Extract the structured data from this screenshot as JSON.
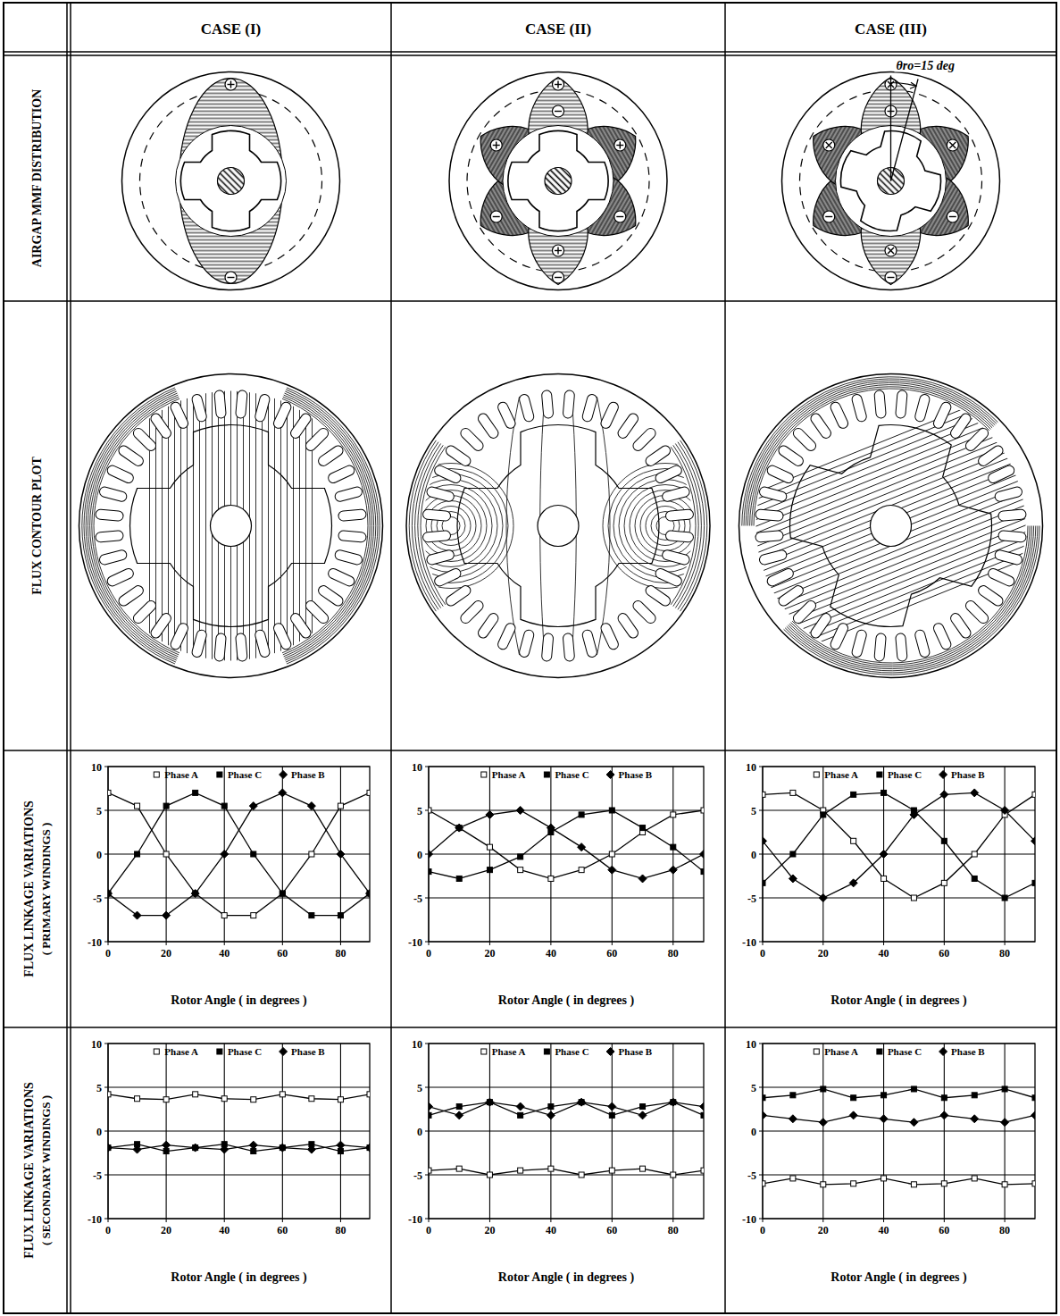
{
  "columns": [
    "CASE (I)",
    "CASE (II)",
    "CASE (III)"
  ],
  "rows": [
    {
      "title": "AIRGAP MMF DISTRIBUTION"
    },
    {
      "title": "FLUX CONTOUR PLOT"
    },
    {
      "title": "FLUX LINKAGE VARIATIONS",
      "subtitle": "( PRIMARY WINDINGS )"
    },
    {
      "title": "FLUX LINKAGE VARIATIONS",
      "subtitle": "( SECONDARY WINDINGS )"
    }
  ],
  "annotation": "θro=15 deg",
  "chart_data": [
    {
      "type": "line",
      "x": [
        0,
        10,
        20,
        30,
        40,
        50,
        60,
        70,
        80,
        90
      ],
      "xlim": [
        0,
        90
      ],
      "ylim": [
        -10,
        10
      ],
      "xticks": [
        0,
        20,
        40,
        60,
        80
      ],
      "yticks": [
        -10,
        -5,
        0,
        5,
        10
      ],
      "xlabel": "Rotor Angle ( in degrees )",
      "grid": true,
      "legend": "top",
      "series": [
        {
          "name": "Phase A",
          "color": "#000000",
          "marker": "open_square",
          "values": [
            7,
            5.5,
            0,
            -4.5,
            -7,
            -7,
            -4.5,
            0,
            5.5,
            7
          ]
        },
        {
          "name": "Phase C",
          "color": "#000000",
          "marker": "square",
          "values": [
            -4.5,
            0,
            5.5,
            7,
            5.5,
            0,
            -4.5,
            -7,
            -7,
            -4.5
          ]
        },
        {
          "name": "Phase B",
          "color": "#000000",
          "marker": "diamond",
          "values": [
            -4.5,
            -7,
            -7,
            -4.5,
            0,
            5.5,
            7,
            5.5,
            0,
            -4.5
          ]
        }
      ]
    },
    {
      "type": "line",
      "x": [
        0,
        10,
        20,
        30,
        40,
        50,
        60,
        70,
        80,
        90
      ],
      "xlim": [
        0,
        90
      ],
      "ylim": [
        -10,
        10
      ],
      "xticks": [
        0,
        20,
        40,
        60,
        80
      ],
      "yticks": [
        -10,
        -5,
        0,
        5,
        10
      ],
      "xlabel": "Rotor Angle ( in degrees )",
      "grid": true,
      "legend": "top",
      "series": [
        {
          "name": "Phase A",
          "color": "#000000",
          "marker": "open_square",
          "values": [
            5,
            3,
            0.8,
            -1.8,
            -2.8,
            -1.8,
            0,
            2.5,
            4.5,
            5
          ]
        },
        {
          "name": "Phase C",
          "color": "#000000",
          "marker": "square",
          "values": [
            -2,
            -2.8,
            -1.8,
            -0.3,
            2.5,
            4.5,
            5,
            3,
            0.8,
            -2
          ]
        },
        {
          "name": "Phase B",
          "color": "#000000",
          "marker": "diamond",
          "values": [
            0,
            3,
            4.5,
            5,
            3,
            0.8,
            -1.8,
            -2.8,
            -1.8,
            0
          ]
        }
      ]
    },
    {
      "type": "line",
      "x": [
        0,
        10,
        20,
        30,
        40,
        50,
        60,
        70,
        80,
        90
      ],
      "xlim": [
        0,
        90
      ],
      "ylim": [
        -10,
        10
      ],
      "xticks": [
        0,
        20,
        40,
        60,
        80
      ],
      "yticks": [
        -10,
        -5,
        0,
        5,
        10
      ],
      "xlabel": "Rotor Angle ( in degrees )",
      "grid": true,
      "legend": "top",
      "series": [
        {
          "name": "Phase A",
          "color": "#000000",
          "marker": "open_square",
          "values": [
            6.8,
            7,
            5,
            1.5,
            -2.8,
            -5,
            -3.3,
            0,
            4.5,
            6.8
          ]
        },
        {
          "name": "Phase C",
          "color": "#000000",
          "marker": "square",
          "values": [
            -3.3,
            0,
            4.5,
            6.8,
            7,
            5,
            1.5,
            -2.8,
            -5,
            -3.3
          ]
        },
        {
          "name": "Phase B",
          "color": "#000000",
          "marker": "diamond",
          "values": [
            1.5,
            -2.8,
            -5,
            -3.3,
            0,
            4.5,
            6.8,
            7,
            5,
            1.5
          ]
        }
      ]
    },
    {
      "type": "line",
      "x": [
        0,
        10,
        20,
        30,
        40,
        50,
        60,
        70,
        80,
        90
      ],
      "xlim": [
        0,
        90
      ],
      "ylim": [
        -10,
        10
      ],
      "xticks": [
        0,
        20,
        40,
        60,
        80
      ],
      "yticks": [
        -10,
        -5,
        0,
        5,
        10
      ],
      "xlabel": "Rotor Angle ( in degrees )",
      "grid": true,
      "legend": "top",
      "series": [
        {
          "name": "Phase A",
          "color": "#000000",
          "marker": "open_square",
          "values": [
            4.2,
            3.7,
            3.6,
            4.2,
            3.7,
            3.6,
            4.2,
            3.7,
            3.6,
            4.2
          ]
        },
        {
          "name": "Phase C",
          "color": "#000000",
          "marker": "square",
          "values": [
            -1.9,
            -1.5,
            -2.3,
            -1.9,
            -1.5,
            -2.3,
            -1.9,
            -1.5,
            -2.3,
            -1.9
          ]
        },
        {
          "name": "Phase B",
          "color": "#000000",
          "marker": "diamond",
          "values": [
            -1.9,
            -2.1,
            -1.6,
            -1.9,
            -2.1,
            -1.6,
            -1.9,
            -2.1,
            -1.6,
            -1.9
          ]
        }
      ]
    },
    {
      "type": "line",
      "x": [
        0,
        10,
        20,
        30,
        40,
        50,
        60,
        70,
        80,
        90
      ],
      "xlim": [
        0,
        90
      ],
      "ylim": [
        -10,
        10
      ],
      "xticks": [
        0,
        20,
        40,
        60,
        80
      ],
      "yticks": [
        -10,
        -5,
        0,
        5,
        10
      ],
      "xlabel": "Rotor Angle ( in degrees )",
      "grid": true,
      "legend": "top",
      "series": [
        {
          "name": "Phase A",
          "color": "#000000",
          "marker": "open_square",
          "values": [
            -4.5,
            -4.3,
            -5,
            -4.5,
            -4.3,
            -5,
            -4.5,
            -4.3,
            -5,
            -4.5
          ]
        },
        {
          "name": "Phase C",
          "color": "#000000",
          "marker": "square",
          "values": [
            1.8,
            2.8,
            3.3,
            1.8,
            2.8,
            3.3,
            1.8,
            2.8,
            3.3,
            1.8
          ]
        },
        {
          "name": "Phase B",
          "color": "#000000",
          "marker": "diamond",
          "values": [
            2.8,
            1.8,
            3.3,
            2.8,
            1.8,
            3.3,
            2.8,
            1.8,
            3.3,
            2.8
          ]
        }
      ]
    },
    {
      "type": "line",
      "x": [
        0,
        10,
        20,
        30,
        40,
        50,
        60,
        70,
        80,
        90
      ],
      "xlim": [
        0,
        90
      ],
      "ylim": [
        -10,
        10
      ],
      "xticks": [
        0,
        20,
        40,
        60,
        80
      ],
      "yticks": [
        -10,
        -5,
        0,
        5,
        10
      ],
      "xlabel": "Rotor Angle ( in degrees )",
      "grid": true,
      "legend": "top",
      "series": [
        {
          "name": "Phase A",
          "color": "#000000",
          "marker": "open_square",
          "values": [
            -6,
            -5.4,
            -6.1,
            -6,
            -5.4,
            -6.1,
            -6,
            -5.4,
            -6.1,
            -6
          ]
        },
        {
          "name": "Phase C",
          "color": "#000000",
          "marker": "square",
          "values": [
            3.8,
            4.1,
            4.8,
            3.8,
            4.1,
            4.8,
            3.8,
            4.1,
            4.8,
            3.8
          ]
        },
        {
          "name": "Phase B",
          "color": "#000000",
          "marker": "diamond",
          "values": [
            1.8,
            1.4,
            1,
            1.8,
            1.4,
            1,
            1.8,
            1.4,
            1,
            1.8
          ]
        }
      ]
    }
  ]
}
